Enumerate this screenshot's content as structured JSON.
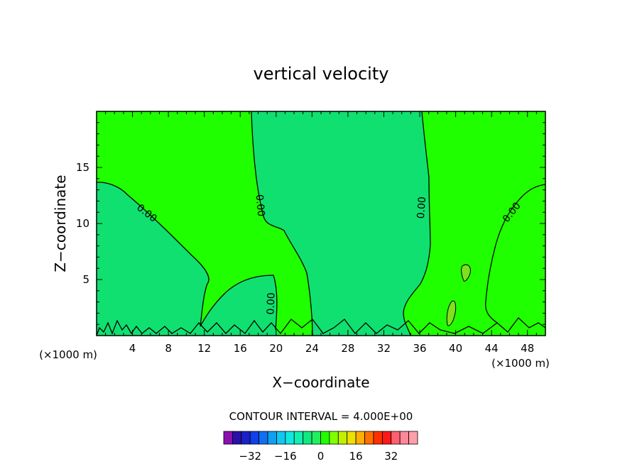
{
  "chart_data": {
    "type": "contour",
    "title": "vertical velocity",
    "xlabel": "X−coordinate",
    "ylabel": "Z−coordinate",
    "x_unit": "(×1000 m)",
    "z_unit": "(×1000 m)",
    "xlim": [
      0,
      50
    ],
    "ylim": [
      0,
      20
    ],
    "x_ticks": [
      4,
      8,
      12,
      16,
      20,
      24,
      28,
      32,
      36,
      40,
      44,
      48
    ],
    "y_ticks": [
      5,
      10,
      15
    ],
    "contour_level_label": "0.00",
    "contour_interval_text": "CONTOUR INTERVAL = 4.000E+00",
    "colorbar": {
      "min": -36,
      "max": 36,
      "step": 4,
      "tick_labels": [
        "−32",
        "−16",
        "0",
        "16",
        "32"
      ],
      "tick_values": [
        -32,
        -16,
        0,
        16,
        32
      ],
      "colors": [
        "#8a10b0",
        "#2a10a8",
        "#1c20c8",
        "#1040e8",
        "#1070f0",
        "#10a0f0",
        "#10c8f0",
        "#10e8e0",
        "#10f0b0",
        "#10e880",
        "#20f060",
        "#20ff00",
        "#80ff00",
        "#c0f000",
        "#f0e000",
        "#ffb000",
        "#ff7000",
        "#ff3000",
        "#ff1818",
        "#ff6070",
        "#ff8898",
        "#ffa0a8"
      ]
    },
    "field_colors": {
      "weak_negative": "#10e070",
      "weak_positive": "#20ff00",
      "positive_cell": "#80e020"
    },
    "grid": false
  }
}
